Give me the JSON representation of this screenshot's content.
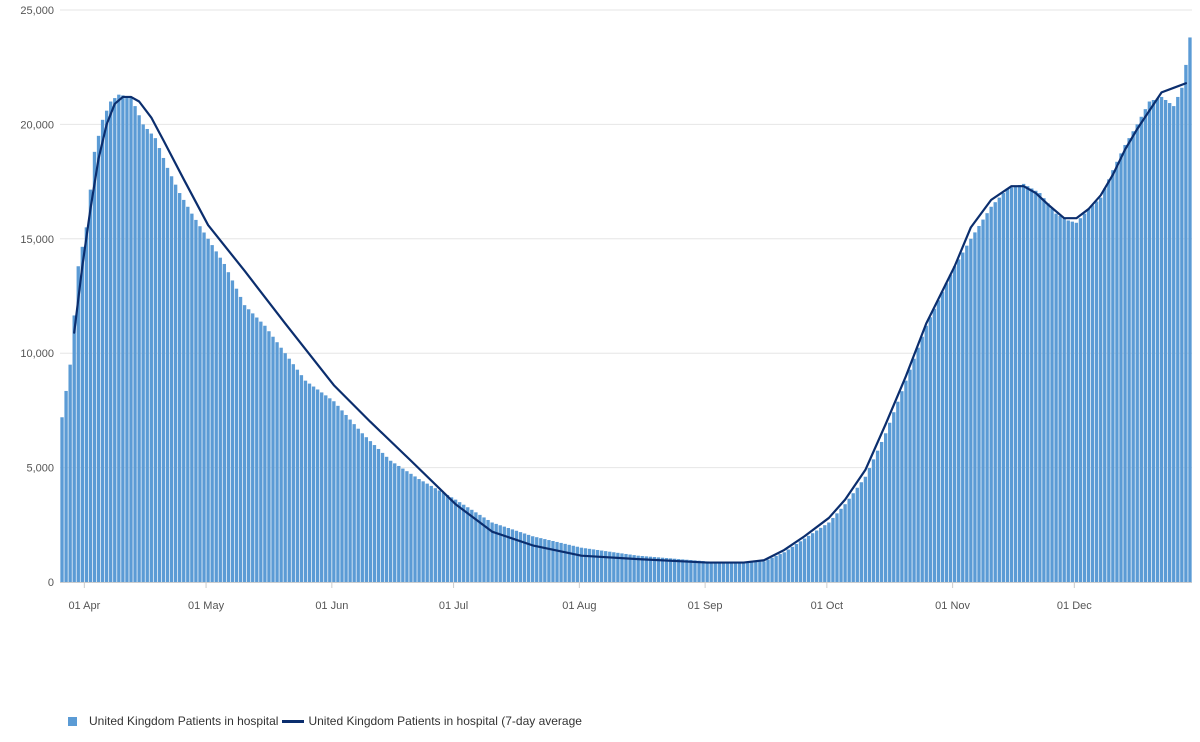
{
  "chart_data": {
    "type": "bar",
    "title": "",
    "xlabel": "",
    "ylabel": "",
    "ylim": [
      0,
      25000
    ],
    "yticks": [
      0,
      5000,
      10000,
      15000,
      20000,
      25000
    ],
    "ytick_labels": [
      "0",
      "5,000",
      "10,000",
      "15,000",
      "20,000",
      "25,000"
    ],
    "x_start_date": "2020-03-26",
    "x_end_date": "2020-12-29",
    "xtick_labels": [
      "01 Apr",
      "01 May",
      "01 Jun",
      "01 Jul",
      "01 Aug",
      "01 Sep",
      "01 Oct",
      "01 Nov",
      "01 Dec"
    ],
    "xtick_dates": [
      "2020-04-01",
      "2020-05-01",
      "2020-06-01",
      "2020-07-01",
      "2020-08-01",
      "2020-09-01",
      "2020-10-01",
      "2020-11-01",
      "2020-12-01"
    ],
    "grid": true,
    "legend_position": "bottom-left",
    "colors": {
      "bars": "#5b9bd5",
      "line": "#0b2e6e",
      "grid": "#e6e6e6",
      "axis": "#cccccc"
    },
    "series": [
      {
        "name": "United Kingdom Patients in hospital",
        "kind": "bar",
        "x": [
          "2020-03-26",
          "2020-03-28",
          "2020-03-30",
          "2020-04-01",
          "2020-04-03",
          "2020-04-05",
          "2020-04-07",
          "2020-04-09",
          "2020-04-12",
          "2020-04-15",
          "2020-04-18",
          "2020-04-21",
          "2020-04-24",
          "2020-04-27",
          "2020-05-01",
          "2020-05-05",
          "2020-05-10",
          "2020-05-15",
          "2020-05-20",
          "2020-05-25",
          "2020-06-01",
          "2020-06-08",
          "2020-06-15",
          "2020-06-22",
          "2020-07-01",
          "2020-07-10",
          "2020-07-20",
          "2020-08-01",
          "2020-08-15",
          "2020-09-01",
          "2020-09-10",
          "2020-09-15",
          "2020-09-20",
          "2020-09-25",
          "2020-10-01",
          "2020-10-05",
          "2020-10-10",
          "2020-10-15",
          "2020-10-20",
          "2020-10-25",
          "2020-11-01",
          "2020-11-05",
          "2020-11-10",
          "2020-11-14",
          "2020-11-18",
          "2020-11-22",
          "2020-11-26",
          "2020-11-29",
          "2020-12-01",
          "2020-12-04",
          "2020-12-07",
          "2020-12-10",
          "2020-12-13",
          "2020-12-16",
          "2020-12-19",
          "2020-12-22",
          "2020-12-25",
          "2020-12-27",
          "2020-12-28",
          "2020-12-29"
        ],
        "values": [
          7200,
          9500,
          13800,
          15500,
          18800,
          20200,
          21000,
          21300,
          21200,
          20000,
          19400,
          18100,
          17000,
          16100,
          15000,
          13900,
          12100,
          11200,
          10000,
          8800,
          7900,
          6500,
          5300,
          4500,
          3600,
          2600,
          2000,
          1500,
          1150,
          900,
          850,
          900,
          1300,
          1900,
          2600,
          3400,
          4600,
          6500,
          8800,
          11200,
          13800,
          15000,
          16400,
          17200,
          17400,
          17000,
          16100,
          15800,
          15700,
          16300,
          16800,
          18000,
          19100,
          20000,
          21000,
          21200,
          20800,
          21600,
          22600,
          23800
        ]
      },
      {
        "name": "United Kingdom Patients in hospital (7-day average",
        "kind": "line",
        "x": [
          "2020-03-29",
          "2020-03-31",
          "2020-04-02",
          "2020-04-04",
          "2020-04-06",
          "2020-04-08",
          "2020-04-10",
          "2020-04-12",
          "2020-04-14",
          "2020-04-17",
          "2020-04-20",
          "2020-04-25",
          "2020-05-01",
          "2020-05-10",
          "2020-05-20",
          "2020-06-01",
          "2020-06-10",
          "2020-06-20",
          "2020-07-01",
          "2020-07-10",
          "2020-07-20",
          "2020-08-01",
          "2020-08-15",
          "2020-09-01",
          "2020-09-10",
          "2020-09-15",
          "2020-09-20",
          "2020-09-25",
          "2020-10-01",
          "2020-10-05",
          "2020-10-10",
          "2020-10-15",
          "2020-10-20",
          "2020-10-25",
          "2020-11-01",
          "2020-11-05",
          "2020-11-10",
          "2020-11-15",
          "2020-11-18",
          "2020-11-21",
          "2020-11-24",
          "2020-11-28",
          "2020-12-01",
          "2020-12-04",
          "2020-12-07",
          "2020-12-10",
          "2020-12-13",
          "2020-12-16",
          "2020-12-19",
          "2020-12-22",
          "2020-12-25",
          "2020-12-28"
        ],
        "values": [
          10900,
          13800,
          16300,
          18500,
          20000,
          20900,
          21200,
          21200,
          21000,
          20300,
          19300,
          17600,
          15600,
          13600,
          11300,
          8600,
          7000,
          5300,
          3400,
          2200,
          1600,
          1150,
          1000,
          850,
          850,
          950,
          1400,
          2000,
          2800,
          3600,
          4900,
          6900,
          9000,
          11300,
          13800,
          15500,
          16700,
          17300,
          17300,
          17000,
          16500,
          15900,
          15900,
          16300,
          16900,
          17800,
          18900,
          19800,
          20600,
          21400,
          21600,
          21800
        ]
      }
    ]
  },
  "legend": {
    "bar_label": "United Kingdom Patients in hospital",
    "line_label": "United Kingdom Patients in hospital (7-day average"
  }
}
